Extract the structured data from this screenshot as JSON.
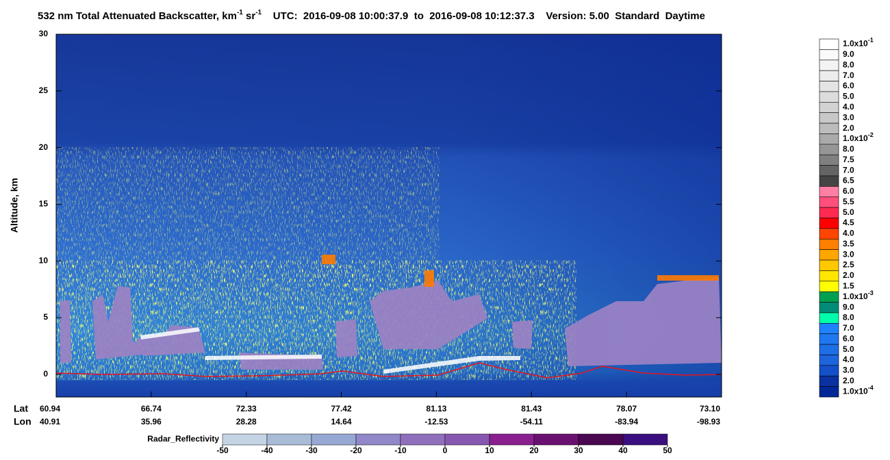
{
  "chart_data": {
    "type": "curtain",
    "title": [
      {
        "text": "532 nm Total Attenuated Backscatter, km"
      },
      {
        "sup": "-1"
      },
      {
        "text": " sr"
      },
      {
        "sup": "-1"
      },
      {
        "text": "    UTC:  2016-09-08 10:00:37.9  to  2016-09-08 10:12:37.3    Version: 5.00  Standard  Daytime"
      }
    ],
    "y_label": "Altitude, km",
    "ylim": [
      -2,
      30
    ],
    "yticks": [
      0,
      5,
      10,
      15,
      20,
      25,
      30
    ],
    "lat_label": "Lat",
    "lon_label": "Lon",
    "lat": [
      "60.94",
      "66.74",
      "72.33",
      "77.42",
      "81.13",
      "81.43",
      "78.07",
      "73.10"
    ],
    "lon": [
      "40.91",
      "35.96",
      "28.28",
      "14.64",
      "-12.53",
      "-54.11",
      "-83.94",
      "-98.93"
    ],
    "colorbar": [
      {
        "label": "1.0x10",
        "exp": "-1",
        "color": "#ffffff"
      },
      {
        "label": "9.0",
        "color": "#fafafa"
      },
      {
        "label": "8.0",
        "color": "#f3f3f3"
      },
      {
        "label": "7.0",
        "color": "#ececec"
      },
      {
        "label": "6.0",
        "color": "#e4e4e4"
      },
      {
        "label": "5.0",
        "color": "#dcdcdc"
      },
      {
        "label": "4.0",
        "color": "#d2d2d2"
      },
      {
        "label": "3.0",
        "color": "#c8c8c8"
      },
      {
        "label": "2.0",
        "color": "#bcbcbc"
      },
      {
        "label": "1.0x10",
        "exp": "-2",
        "color": "#aaaaaa"
      },
      {
        "label": "8.0",
        "color": "#969696"
      },
      {
        "label": "7.5",
        "color": "#808080"
      },
      {
        "label": "7.0",
        "color": "#646464"
      },
      {
        "label": "6.5",
        "color": "#444444"
      },
      {
        "label": "6.0",
        "color": "#ff7fa5"
      },
      {
        "label": "5.5",
        "color": "#ff4f7a"
      },
      {
        "label": "5.0",
        "color": "#ff2a50"
      },
      {
        "label": "4.5",
        "color": "#ff0000"
      },
      {
        "label": "4.0",
        "color": "#ff4500"
      },
      {
        "label": "3.5",
        "color": "#ff7f00"
      },
      {
        "label": "3.0",
        "color": "#ffa500"
      },
      {
        "label": "2.5",
        "color": "#ffc800"
      },
      {
        "label": "2.0",
        "color": "#ffe600"
      },
      {
        "label": "1.5",
        "color": "#ffff00"
      },
      {
        "label": "1.0x10",
        "exp": "-3",
        "color": "#00a050"
      },
      {
        "label": "9.0",
        "color": "#008c78"
      },
      {
        "label": "8.0",
        "color": "#00ffaa"
      },
      {
        "label": "7.0",
        "color": "#1e82ff"
      },
      {
        "label": "6.0",
        "color": "#1e78f0"
      },
      {
        "label": "5.0",
        "color": "#1e6ee6"
      },
      {
        "label": "4.0",
        "color": "#1e64dc"
      },
      {
        "label": "3.0",
        "color": "#1450c8"
      },
      {
        "label": "2.0",
        "color": "#0a32a0"
      },
      {
        "label": "1.0x10",
        "exp": "-4",
        "color": "#002896"
      }
    ],
    "radar": {
      "label": "Radar_Reflectivity",
      "lim": [
        -50,
        50
      ],
      "ticks": [
        -50,
        -40,
        -30,
        -20,
        -10,
        0,
        10,
        20,
        30,
        40,
        50
      ],
      "colors": [
        "#c4d4e4",
        "#a8bcd8",
        "#98a8d4",
        "#9088c8",
        "#9070bc",
        "#8858b0",
        "#8a2090",
        "#6a1070",
        "#4a0850",
        "#3a1080"
      ]
    }
  }
}
